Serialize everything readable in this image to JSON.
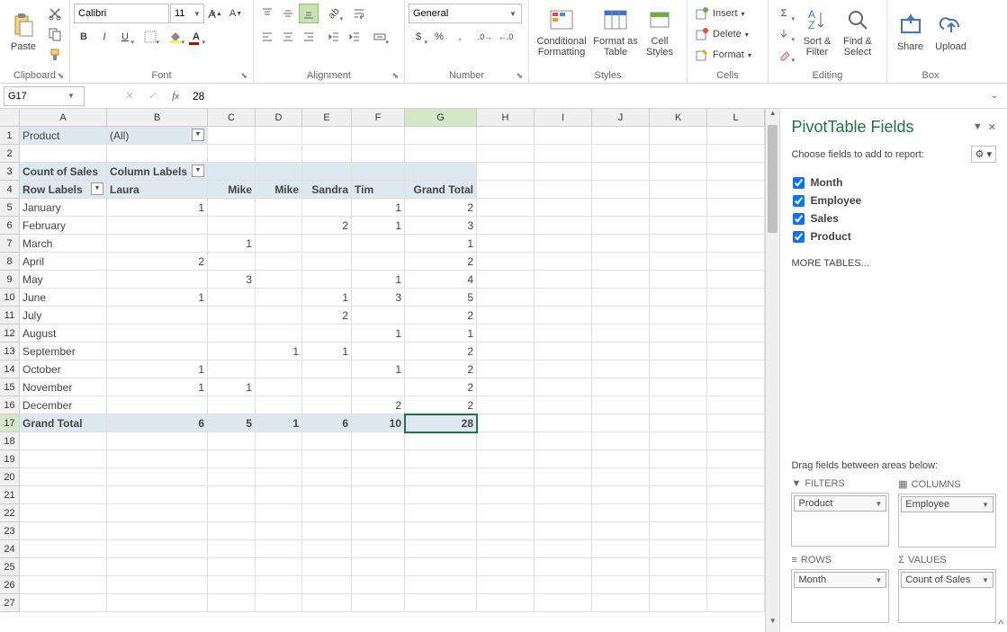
{
  "ribbon": {
    "paste": "Paste",
    "font_name": "Calibri",
    "font_size": "11",
    "number_format": "General",
    "cond_fmt": "Conditional Formatting",
    "fmt_table": "Format as Table",
    "cell_styles": "Cell Styles",
    "insert": "Insert",
    "delete": "Delete",
    "format": "Format",
    "sort_filter": "Sort & Filter",
    "find_select": "Find & Select",
    "share": "Share",
    "upload": "Upload",
    "groups": {
      "clipboard": "Clipboard",
      "font": "Font",
      "alignment": "Alignment",
      "number": "Number",
      "styles": "Styles",
      "cells": "Cells",
      "editing": "Editing",
      "box": "Box"
    }
  },
  "formula_bar": {
    "cell_ref": "G17",
    "formula": "28"
  },
  "grid": {
    "columns": [
      "A",
      "B",
      "C",
      "D",
      "E",
      "F",
      "G",
      "H",
      "I",
      "J",
      "K",
      "L"
    ],
    "selected_col": "G",
    "selected_row": 17,
    "pivot": {
      "filter_label": "Product",
      "filter_value": "(All)",
      "data_label": "Count of Sales",
      "col_label": "Column Labels",
      "row_label": "Row Labels",
      "col_headers": [
        "Laura",
        "Mike",
        "Mike",
        "Sandra",
        "Tim",
        "Grand Total"
      ],
      "rows": [
        {
          "label": "January",
          "v": [
            "1",
            "",
            "",
            "",
            "1",
            "2"
          ]
        },
        {
          "label": "February",
          "v": [
            "",
            "",
            "",
            "2",
            "1",
            "3"
          ]
        },
        {
          "label": "March",
          "v": [
            "",
            "1",
            "",
            "",
            "",
            "1"
          ]
        },
        {
          "label": "April",
          "v": [
            "2",
            "",
            "",
            "",
            "",
            "2"
          ]
        },
        {
          "label": "May",
          "v": [
            "",
            "3",
            "",
            "",
            "1",
            "4"
          ]
        },
        {
          "label": "June",
          "v": [
            "1",
            "",
            "",
            "1",
            "3",
            "5"
          ]
        },
        {
          "label": "July",
          "v": [
            "",
            "",
            "",
            "2",
            "",
            "2"
          ]
        },
        {
          "label": "August",
          "v": [
            "",
            "",
            "",
            "",
            "1",
            "1"
          ]
        },
        {
          "label": "September",
          "v": [
            "",
            "",
            "1",
            "1",
            "",
            "2"
          ]
        },
        {
          "label": "October",
          "v": [
            "1",
            "",
            "",
            "",
            "1",
            "2"
          ]
        },
        {
          "label": "November",
          "v": [
            "1",
            "1",
            "",
            "",
            "",
            "2"
          ]
        },
        {
          "label": "December",
          "v": [
            "",
            "",
            "",
            "",
            "2",
            "2"
          ]
        }
      ],
      "grand_total_label": "Grand Total",
      "grand_total": [
        "6",
        "5",
        "1",
        "6",
        "10",
        "28"
      ]
    }
  },
  "pivot_panel": {
    "title": "PivotTable Fields",
    "subtitle": "Choose fields to add to report:",
    "fields": [
      {
        "name": "Month",
        "checked": true
      },
      {
        "name": "Employee",
        "checked": true
      },
      {
        "name": "Sales",
        "checked": true
      },
      {
        "name": "Product",
        "checked": true
      }
    ],
    "more_tables": "MORE TABLES...",
    "drag_label": "Drag fields between areas below:",
    "areas": {
      "filters": {
        "title": "FILTERS",
        "item": "Product"
      },
      "columns": {
        "title": "COLUMNS",
        "item": "Employee"
      },
      "rows": {
        "title": "ROWS",
        "item": "Month"
      },
      "values": {
        "title": "VALUES",
        "item": "Count of Sales"
      }
    }
  },
  "colors": {
    "accent": "#217346",
    "header_bg": "#f0f0f0",
    "pivot_hdr_bg": "#dde8f0",
    "selected_hdr": "#d4e8c8",
    "border": "#e0e0e0"
  }
}
